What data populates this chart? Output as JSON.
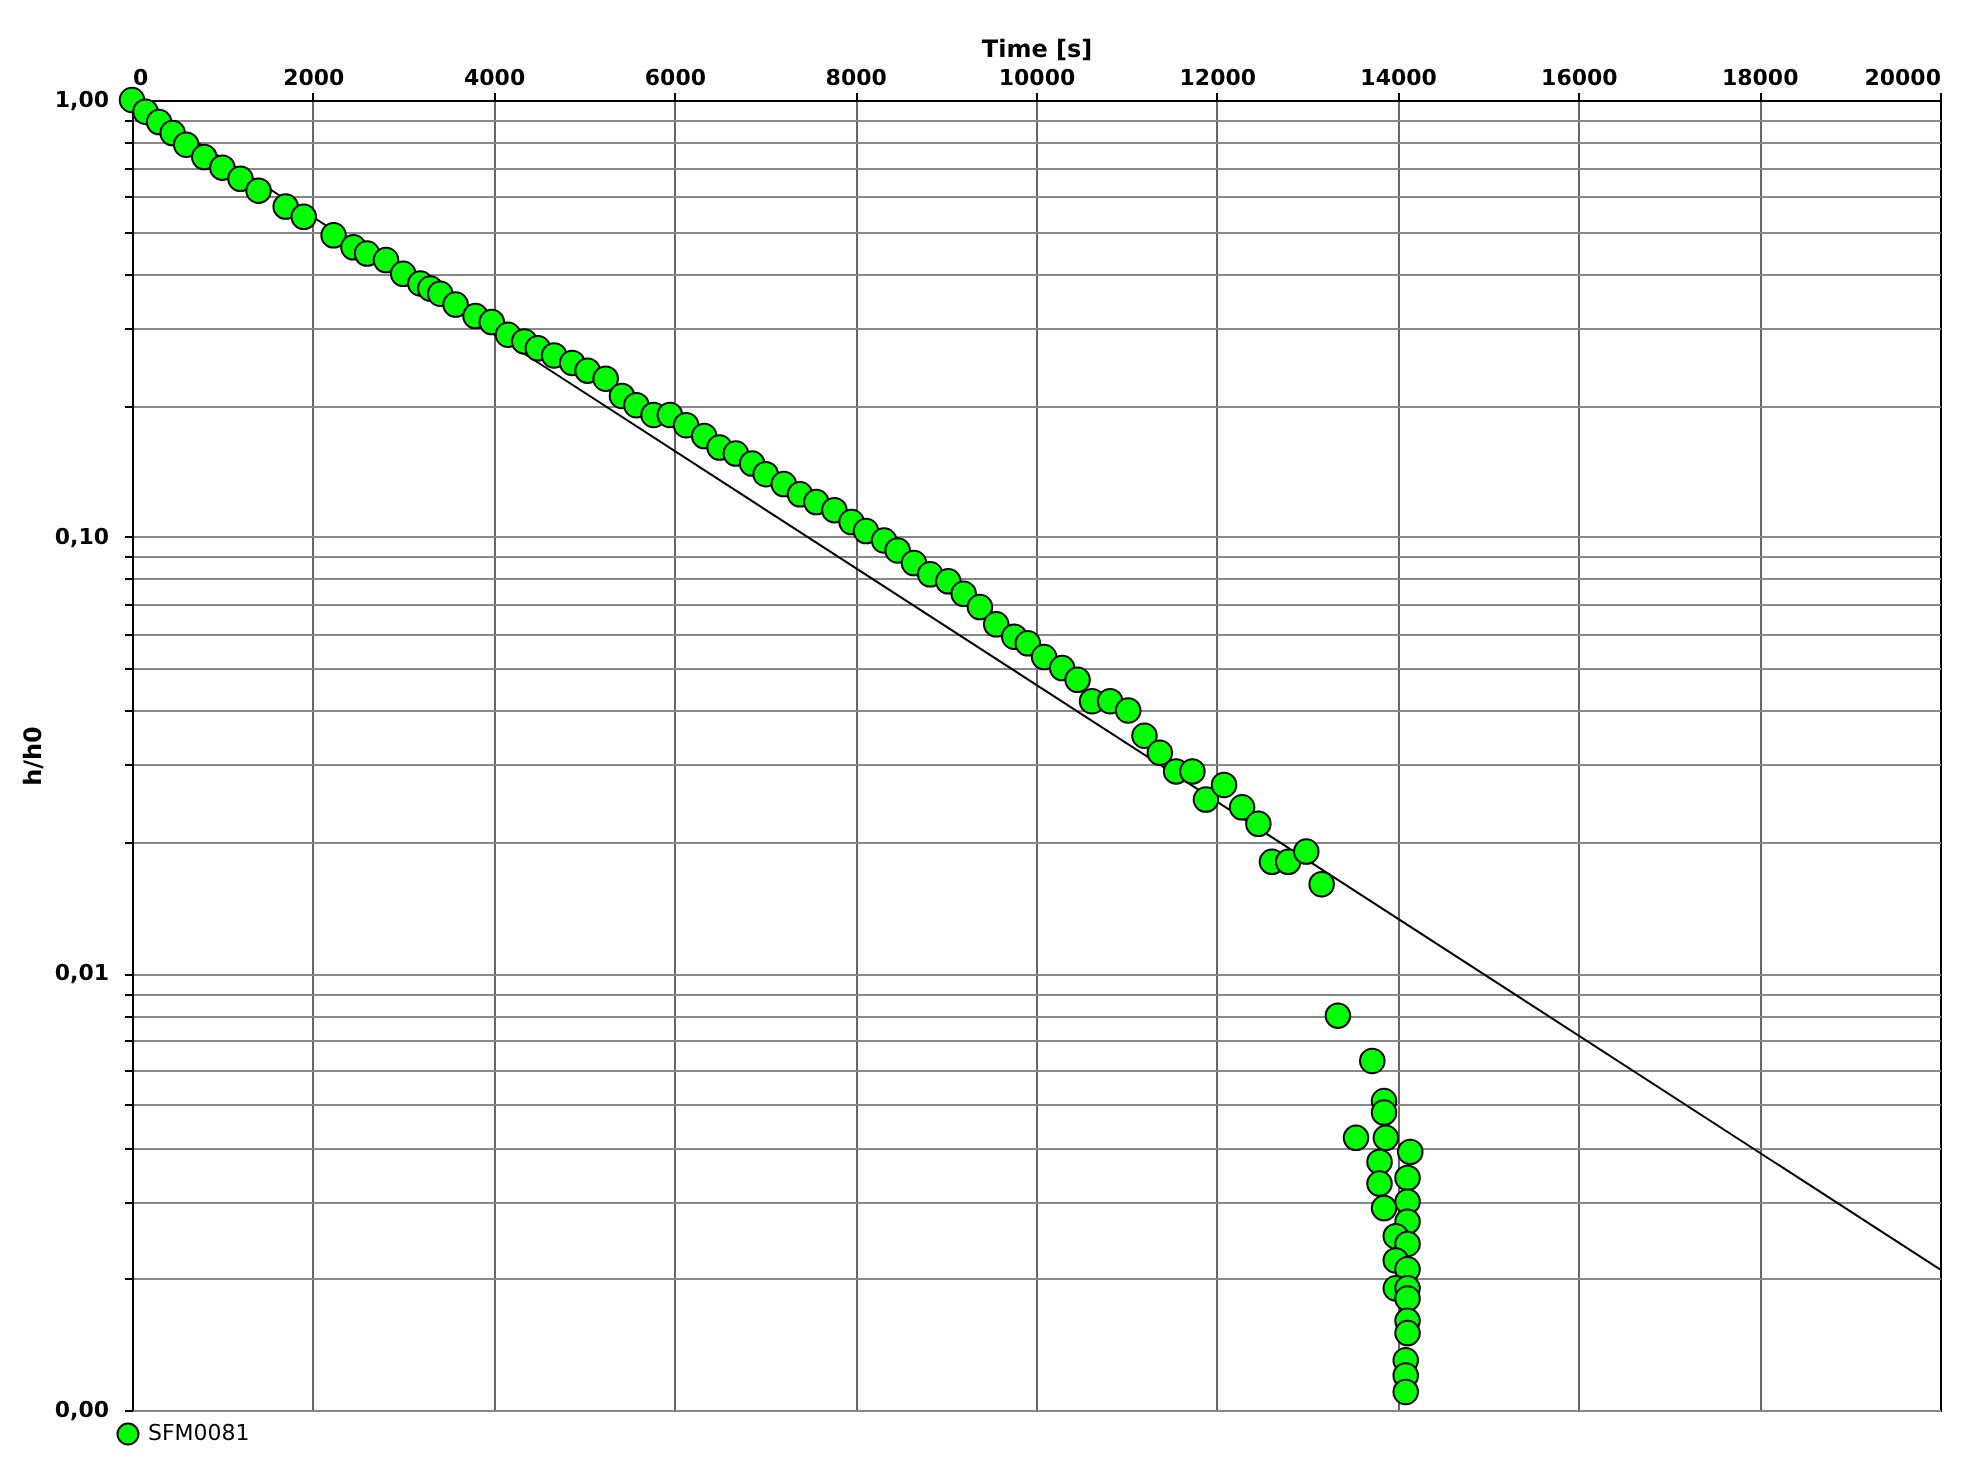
{
  "chart_data": {
    "type": "scatter",
    "xlabel": "Time [s]",
    "ylabel": "h/h0",
    "log": "y",
    "grid": true,
    "legend": "bottom left",
    "xlim": [
      0,
      20000
    ],
    "xticks": [
      0,
      2000,
      4000,
      6000,
      8000,
      10000,
      12000,
      14000,
      16000,
      18000,
      20000
    ],
    "ylim": [
      0.001,
      1
    ],
    "yticks": [
      {
        "value": 0.001,
        "label": "0,00"
      },
      {
        "value": 0.002,
        "label": null
      },
      {
        "value": 0.003,
        "label": null
      },
      {
        "value": 0.004,
        "label": null
      },
      {
        "value": 0.005,
        "label": null
      },
      {
        "value": 0.006,
        "label": null
      },
      {
        "value": 0.007,
        "label": null
      },
      {
        "value": 0.008,
        "label": null
      },
      {
        "value": 0.009,
        "label": null
      },
      {
        "value": 0.01,
        "label": "0,01"
      },
      {
        "value": 0.02,
        "label": null
      },
      {
        "value": 0.03,
        "label": null
      },
      {
        "value": 0.04,
        "label": null
      },
      {
        "value": 0.05,
        "label": null
      },
      {
        "value": 0.06,
        "label": null
      },
      {
        "value": 0.07,
        "label": null
      },
      {
        "value": 0.08,
        "label": null
      },
      {
        "value": 0.09,
        "label": null
      },
      {
        "value": 0.1,
        "label": "0,10"
      },
      {
        "value": 0.2,
        "label": null
      },
      {
        "value": 0.3,
        "label": null
      },
      {
        "value": 0.4,
        "label": null
      },
      {
        "value": 0.5,
        "label": null
      },
      {
        "value": 0.6,
        "label": null
      },
      {
        "value": 0.7,
        "label": null
      },
      {
        "value": 0.8,
        "label": null
      },
      {
        "value": 0.9,
        "label": null
      },
      {
        "value": 1,
        "label": "1,00"
      }
    ],
    "series": [
      {
        "name": "SFM0081",
        "marker": "circle",
        "color": "#00ff00",
        "x": [
          0,
          150,
          300,
          450,
          600,
          800,
          1000,
          1200,
          1400,
          1700,
          1900,
          2230,
          2450,
          2600,
          2810,
          3000,
          3190,
          3300,
          3410,
          3580,
          3800,
          3980,
          4160,
          4340,
          4490,
          4670,
          4870,
          5040,
          5240,
          5420,
          5580,
          5770,
          5950,
          6130,
          6330,
          6500,
          6680,
          6860,
          7010,
          7210,
          7390,
          7570,
          7770,
          7960,
          8120,
          8320,
          8470,
          8650,
          8830,
          9030,
          9200,
          9380,
          9560,
          9760,
          9910,
          10090,
          10290,
          10460,
          10620,
          10820,
          11020,
          11200,
          11370,
          11550,
          11730,
          11880,
          12080,
          12280,
          12460,
          12610,
          12790,
          12990,
          13160,
          13340,
          13720,
          13850,
          13850,
          13540,
          13870,
          14140,
          13800,
          14110,
          13800,
          14110,
          13850,
          14110,
          13980,
          14110,
          13980,
          14110,
          13980,
          14110,
          14110,
          14110,
          14110,
          14090,
          14090,
          14090
        ],
        "values": [
          1.0,
          0.94,
          0.89,
          0.84,
          0.79,
          0.74,
          0.7,
          0.66,
          0.62,
          0.57,
          0.54,
          0.49,
          0.46,
          0.445,
          0.43,
          0.4,
          0.38,
          0.37,
          0.36,
          0.34,
          0.32,
          0.31,
          0.29,
          0.28,
          0.27,
          0.26,
          0.25,
          0.24,
          0.23,
          0.21,
          0.2,
          0.19,
          0.19,
          0.18,
          0.17,
          0.16,
          0.155,
          0.147,
          0.139,
          0.132,
          0.125,
          0.12,
          0.115,
          0.108,
          0.103,
          0.098,
          0.093,
          0.087,
          0.082,
          0.079,
          0.074,
          0.069,
          0.063,
          0.059,
          0.057,
          0.053,
          0.05,
          0.047,
          0.042,
          0.042,
          0.04,
          0.035,
          0.032,
          0.029,
          0.029,
          0.025,
          0.027,
          0.024,
          0.022,
          0.018,
          0.018,
          0.019,
          0.016,
          0.008,
          0.0063,
          0.0051,
          0.0048,
          0.0042,
          0.0042,
          0.0039,
          0.0037,
          0.0034,
          0.0033,
          0.003,
          0.0029,
          0.0027,
          0.0025,
          0.0024,
          0.0022,
          0.0021,
          0.0019,
          0.0019,
          0.0018,
          0.0016,
          0.0015,
          0.0013,
          0.0012,
          0.0011
        ]
      },
      {
        "type": "line",
        "color": "#000000",
        "x": [
          0,
          20000
        ],
        "values": [
          1,
          0.0021
        ]
      }
    ]
  }
}
